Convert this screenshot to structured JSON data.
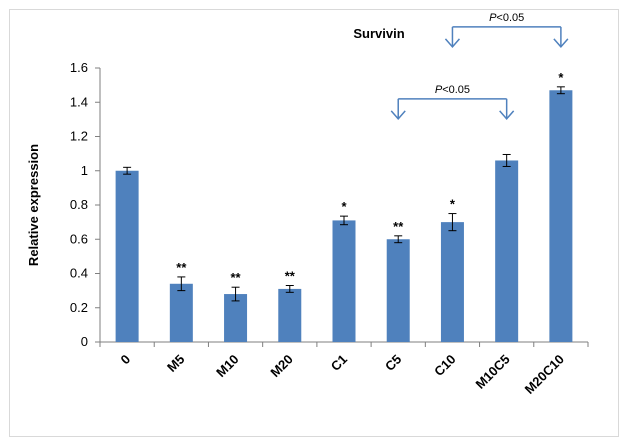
{
  "chart_data": {
    "type": "bar",
    "title": "Survivin",
    "xlabel": "",
    "ylabel": "Relative expression",
    "ylim": [
      0,
      1.6
    ],
    "yticks": [
      "0",
      "0.2",
      "0.4",
      "0.6",
      "0.8",
      "1",
      "1.2",
      "1.4",
      "1.6"
    ],
    "categories": [
      "0",
      "M5",
      "M10",
      "M20",
      "C1",
      "C5",
      "C10",
      "M10C5",
      "M20C10"
    ],
    "values": [
      1.0,
      0.34,
      0.28,
      0.31,
      0.71,
      0.6,
      0.7,
      1.06,
      1.47
    ],
    "errors": [
      0.02,
      0.04,
      0.04,
      0.02,
      0.025,
      0.02,
      0.05,
      0.035,
      0.02
    ],
    "significance": [
      "",
      "**",
      "**",
      "**",
      "*",
      "**",
      "*",
      "",
      "*"
    ],
    "bar_color": "#4f81bd",
    "bracket_color": "#4f81bd",
    "comparisons": [
      {
        "from": "C5",
        "to": "M10C5",
        "label": "P<0.05",
        "label_italic": "P",
        "label_rest": "<0.05",
        "level": 1.42
      },
      {
        "from": "C10",
        "to": "M20C10",
        "label": "P<0.05",
        "label_italic": "P",
        "label_rest": "<0.05",
        "level": 1.84
      }
    ],
    "grid": false,
    "legend": "none"
  }
}
